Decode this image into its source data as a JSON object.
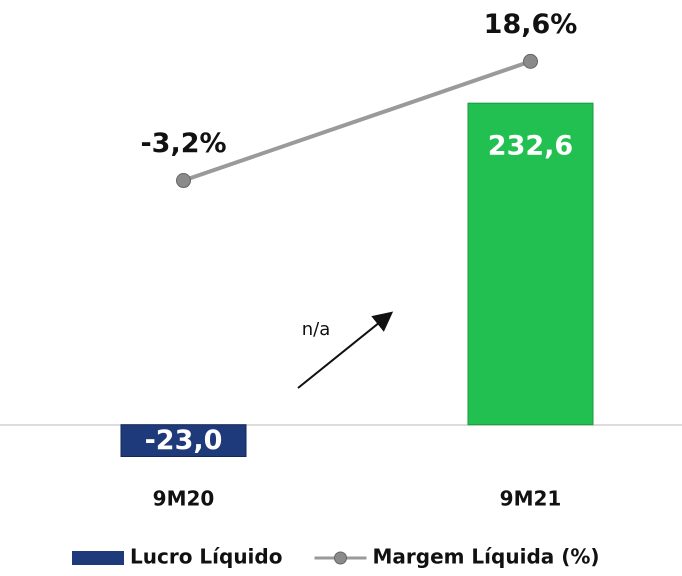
{
  "chart_data": {
    "type": "bar",
    "categories": [
      "9M20",
      "9M21"
    ],
    "series": [
      {
        "name": "Lucro Líquido",
        "type": "bar",
        "color": "#1f3a7a",
        "values": [
          -23.0,
          232.6
        ],
        "value_labels": [
          "-23,0",
          "232,6"
        ]
      },
      {
        "name": "Margem Líquida (%)",
        "type": "line",
        "axis": "y2",
        "color": "#9a9a9a",
        "values": [
          -3.2,
          18.6
        ],
        "value_labels": [
          "-3,2%",
          "18,6%"
        ]
      }
    ],
    "positive_color": "#22c050",
    "ylim": [
      -40,
      300
    ],
    "y2lim": [
      -58,
      28
    ],
    "annotations": [
      "n/a"
    ],
    "legend": "bottom"
  }
}
